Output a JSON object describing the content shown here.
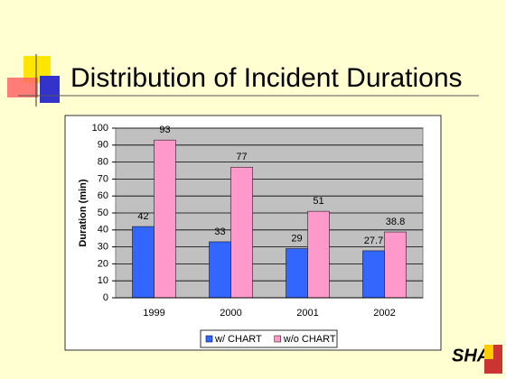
{
  "chart_data": {
    "type": "bar",
    "title": "Distribution of Incident Durations",
    "y_label": "Duration (min)",
    "categories": [
      "1999",
      "2000",
      "2001",
      "2002"
    ],
    "series": [
      {
        "name": "w/ CHART",
        "color": "#3366ff",
        "values": [
          42,
          33,
          29,
          27.7
        ]
      },
      {
        "name": "w/o CHART",
        "color": "#ff99cc",
        "values": [
          93,
          77,
          51,
          38.8
        ]
      }
    ],
    "ylim": [
      0,
      100
    ],
    "yticks": [
      0,
      10,
      20,
      30,
      40,
      50,
      60,
      70,
      80,
      90,
      100
    ],
    "grid": true,
    "legend": "bottom"
  },
  "logo": "SHA"
}
